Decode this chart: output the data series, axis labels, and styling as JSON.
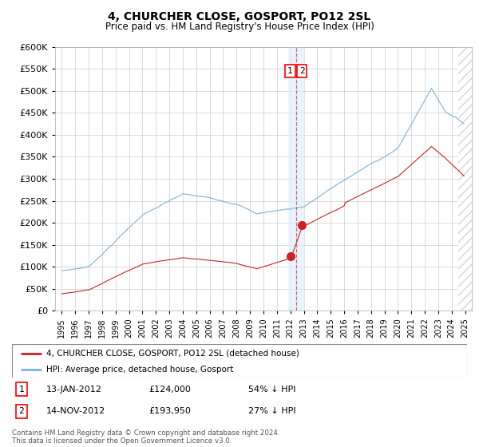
{
  "title": "4, CHURCHER CLOSE, GOSPORT, PO12 2SL",
  "subtitle": "Price paid vs. HM Land Registry's House Price Index (HPI)",
  "legend_line1": "4, CHURCHER CLOSE, GOSPORT, PO12 2SL (detached house)",
  "legend_line2": "HPI: Average price, detached house, Gosport",
  "transaction1_date": "13-JAN-2012",
  "transaction1_price": 124000,
  "transaction1_label": "54% ↓ HPI",
  "transaction2_date": "14-NOV-2012",
  "transaction2_price": 193950,
  "transaction2_label": "27% ↓ HPI",
  "transaction1_x": 2012.04,
  "transaction2_x": 2012.87,
  "vline_x": 2012.46,
  "footer": "Contains HM Land Registry data © Crown copyright and database right 2024.\nThis data is licensed under the Open Government Licence v3.0.",
  "hpi_color": "#7ab4d8",
  "price_color": "#cc2222",
  "vline_color": "#cc4444",
  "background_color": "#ffffff",
  "grid_color": "#cccccc",
  "ylim": [
    0,
    600000
  ],
  "xlim_start": 1994.5,
  "xlim_end": 2025.5,
  "hatch_start": 2024.5,
  "vspan_color": "#ddeeff",
  "vspan_alpha": 0.6,
  "hatch_alpha": 0.15
}
